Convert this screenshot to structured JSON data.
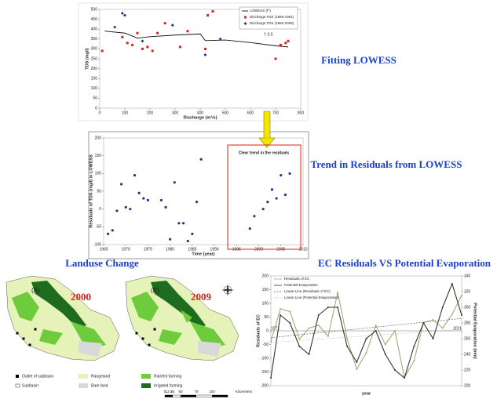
{
  "headings": [
    "Fitting LOWESS",
    "Trend in Residuals from LOWESS",
    "Landuse Change",
    "EC Residuals VS Potential Evaporation"
  ],
  "maps": {
    "panels": [
      {
        "label": "(A)",
        "year": "2000"
      },
      {
        "label": "(B)",
        "year": "2009"
      }
    ],
    "legend": [
      "Outlet of subbasin",
      "Subbasin",
      "Rangeland",
      "Bare land",
      "Rainfed farming",
      "Irrigated farming"
    ],
    "scale": [
      "0",
      "12.5",
      "25",
      "50",
      "75",
      "100",
      "Kilometers"
    ]
  },
  "chart_data": [
    {
      "type": "scatter",
      "xlabel": "Discharge (m³/s)",
      "ylabel": "TDS (mg/l)",
      "annotation": "f: 0.5",
      "xlim": [
        0,
        800
      ],
      "xticks": [
        0,
        100,
        200,
        300,
        400,
        500,
        600,
        700,
        800
      ],
      "ylim": [
        0,
        500
      ],
      "yticks": [
        0,
        50,
        100,
        150,
        200,
        250,
        300,
        350,
        400,
        450,
        500
      ],
      "series": [
        {
          "name": "LOWESS (f^)",
          "kind": "line",
          "color": "#111111",
          "x": [
            20,
            100,
            150,
            200,
            300,
            400,
            420,
            500,
            600,
            700,
            750
          ],
          "values": [
            390,
            380,
            355,
            362,
            370,
            376,
            342,
            345,
            332,
            316,
            310
          ]
        },
        {
          "name": "Discharge TDS (1968-1991)",
          "kind": "square",
          "color": "#e0201b",
          "x": [
            10,
            90,
            110,
            130,
            150,
            170,
            190,
            210,
            230,
            260,
            320,
            350,
            420,
            430,
            450,
            700,
            720,
            740,
            750
          ],
          "values": [
            290,
            360,
            330,
            320,
            380,
            300,
            310,
            290,
            380,
            430,
            310,
            390,
            300,
            470,
            490,
            250,
            320,
            330,
            340
          ]
        },
        {
          "name": "Discharge TDS (1992-2008)",
          "kind": "diamond",
          "color": "#1f3a7a",
          "x": [
            60,
            90,
            100,
            170,
            290,
            420,
            480
          ],
          "values": [
            410,
            480,
            470,
            340,
            420,
            270,
            350
          ]
        }
      ]
    },
    {
      "type": "scatter",
      "xlabel": "Time (year)",
      "ylabel": "Residuals of TDS (mg/l) in LOWESS",
      "annotation": "Clear trend in the residuals",
      "xlim": [
        1965,
        2010
      ],
      "xticks": [
        1965,
        1970,
        1975,
        1980,
        1985,
        1990,
        1995,
        2000,
        2005,
        2010
      ],
      "ylim": [
        -100,
        200
      ],
      "yticks": [
        -100,
        -50,
        0,
        50,
        100,
        150,
        200
      ],
      "series": [
        {
          "name": "Residuals",
          "kind": "dot",
          "color": "#1f3a7a",
          "x": [
            1966,
            1967,
            1968,
            1969,
            1970,
            1971,
            1972,
            1973,
            1974,
            1975,
            1978,
            1979,
            1980,
            1981,
            1982,
            1983,
            1984,
            1985,
            1986,
            1987,
            1998,
            1999,
            2001,
            2002,
            2003,
            2004,
            2005,
            2006,
            2007
          ],
          "values": [
            -70,
            -60,
            -5,
            70,
            5,
            0,
            95,
            45,
            30,
            25,
            25,
            5,
            -85,
            75,
            -40,
            -40,
            -90,
            -70,
            20,
            140,
            -55,
            -20,
            0,
            20,
            55,
            30,
            95,
            40,
            100
          ]
        }
      ]
    },
    {
      "type": "line",
      "xlabel": "year",
      "ylabel": "Residuals of EC",
      "y2label": "Potential Evaporation (mm)",
      "xlim": [
        1971,
        2011
      ],
      "xticks": [
        1971,
        2011
      ],
      "ylim": [
        -200,
        200
      ],
      "yticks": [
        -200,
        -150,
        -100,
        -50,
        0,
        50,
        100,
        150,
        200
      ],
      "y2lim": [
        200,
        340
      ],
      "y2ticks": [
        200,
        220,
        240,
        260,
        280,
        300,
        320,
        340
      ],
      "x": [
        1971,
        1973,
        1975,
        1977,
        1979,
        1981,
        1983,
        1985,
        1987,
        1989,
        1991,
        1993,
        1995,
        1997,
        1999,
        2001,
        2003,
        2005,
        2007,
        2009,
        2011
      ],
      "series": [
        {
          "name": "Residuals of EC",
          "color": "#a8a878",
          "dash": "",
          "marker": true,
          "values": [
            -40,
            80,
            70,
            -30,
            10,
            20,
            -20,
            140,
            -30,
            -140,
            -80,
            20,
            -50,
            0,
            -170,
            -110,
            30,
            40,
            10,
            60,
            130
          ]
        },
        {
          "name": "Potential Evaporation",
          "axis": "y2",
          "color": "#333333",
          "dash": "",
          "marker": true,
          "values": [
            210,
            290,
            280,
            250,
            240,
            290,
            300,
            300,
            250,
            230,
            260,
            270,
            240,
            220,
            210,
            250,
            280,
            260,
            300,
            330,
            290
          ]
        },
        {
          "name": "Linear Line (Residuals of EC)",
          "color": "#555555",
          "dash": "2,1.5",
          "marker": false,
          "x": [
            1971,
            2011
          ],
          "values": [
            -25,
            45
          ]
        },
        {
          "name": "Linear Line (Potential Evaporation)",
          "axis": "y2",
          "color": "#999999",
          "dash": "0.6,1",
          "marker": false,
          "x": [
            1971,
            2011
          ],
          "values": [
            255,
            272
          ]
        }
      ]
    }
  ]
}
